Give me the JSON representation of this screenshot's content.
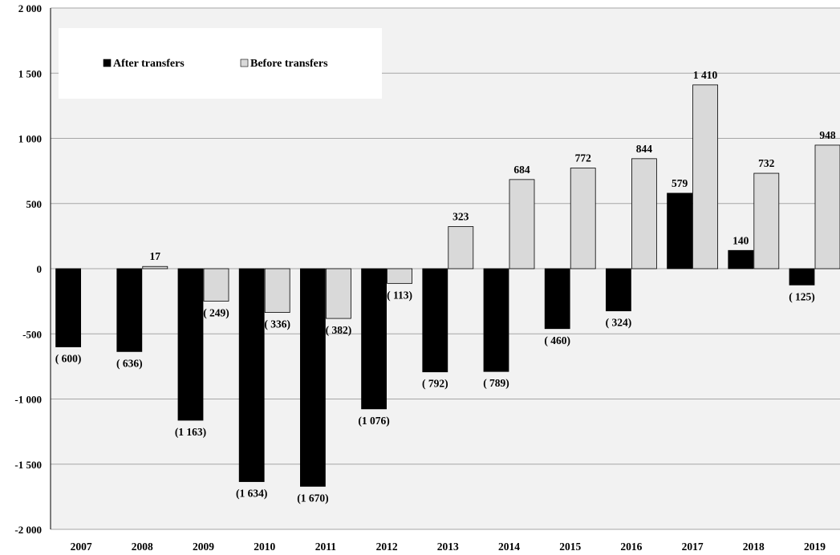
{
  "chart_data": {
    "type": "bar",
    "categories": [
      "2007",
      "2008",
      "2009",
      "2010",
      "2011",
      "2012",
      "2013",
      "2014",
      "2015",
      "2016",
      "2017",
      "2018",
      "2019"
    ],
    "series": [
      {
        "name": "After transfers",
        "color": "#000000",
        "values": [
          -600,
          -636,
          -1163,
          -1634,
          -1670,
          -1076,
          -792,
          -789,
          -460,
          -324,
          579,
          140,
          -125
        ],
        "labels": [
          "( 600)",
          "( 636)",
          "(1 163)",
          "(1 634)",
          "(1 670)",
          "(1 076)",
          "( 792)",
          "( 789)",
          "( 460)",
          "( 324)",
          "579",
          "140",
          "( 125)"
        ]
      },
      {
        "name": "Before transfers",
        "color": "#d9d9d9",
        "values": [
          null,
          17,
          -249,
          -336,
          -382,
          -113,
          323,
          684,
          772,
          844,
          1410,
          732,
          948
        ],
        "labels": [
          "",
          "17",
          "( 249)",
          "( 336)",
          "( 382)",
          "( 113)",
          "323",
          "684",
          "772",
          "844",
          "1 410",
          "732",
          "948"
        ]
      }
    ],
    "yticks": [
      2000,
      1500,
      1000,
      500,
      0,
      -500,
      -1000,
      -1500,
      -2000
    ],
    "ytick_labels": [
      "2 000",
      "1 500",
      "1 000",
      "500",
      "0",
      "-500",
      "-1 000",
      "-1 500",
      "-2 000"
    ],
    "ylim": [
      -2000,
      2000
    ],
    "grid": true,
    "legend_position": "top-left",
    "plot_background": "#f2f2f2",
    "gridline_color": "#a6a6a6"
  }
}
